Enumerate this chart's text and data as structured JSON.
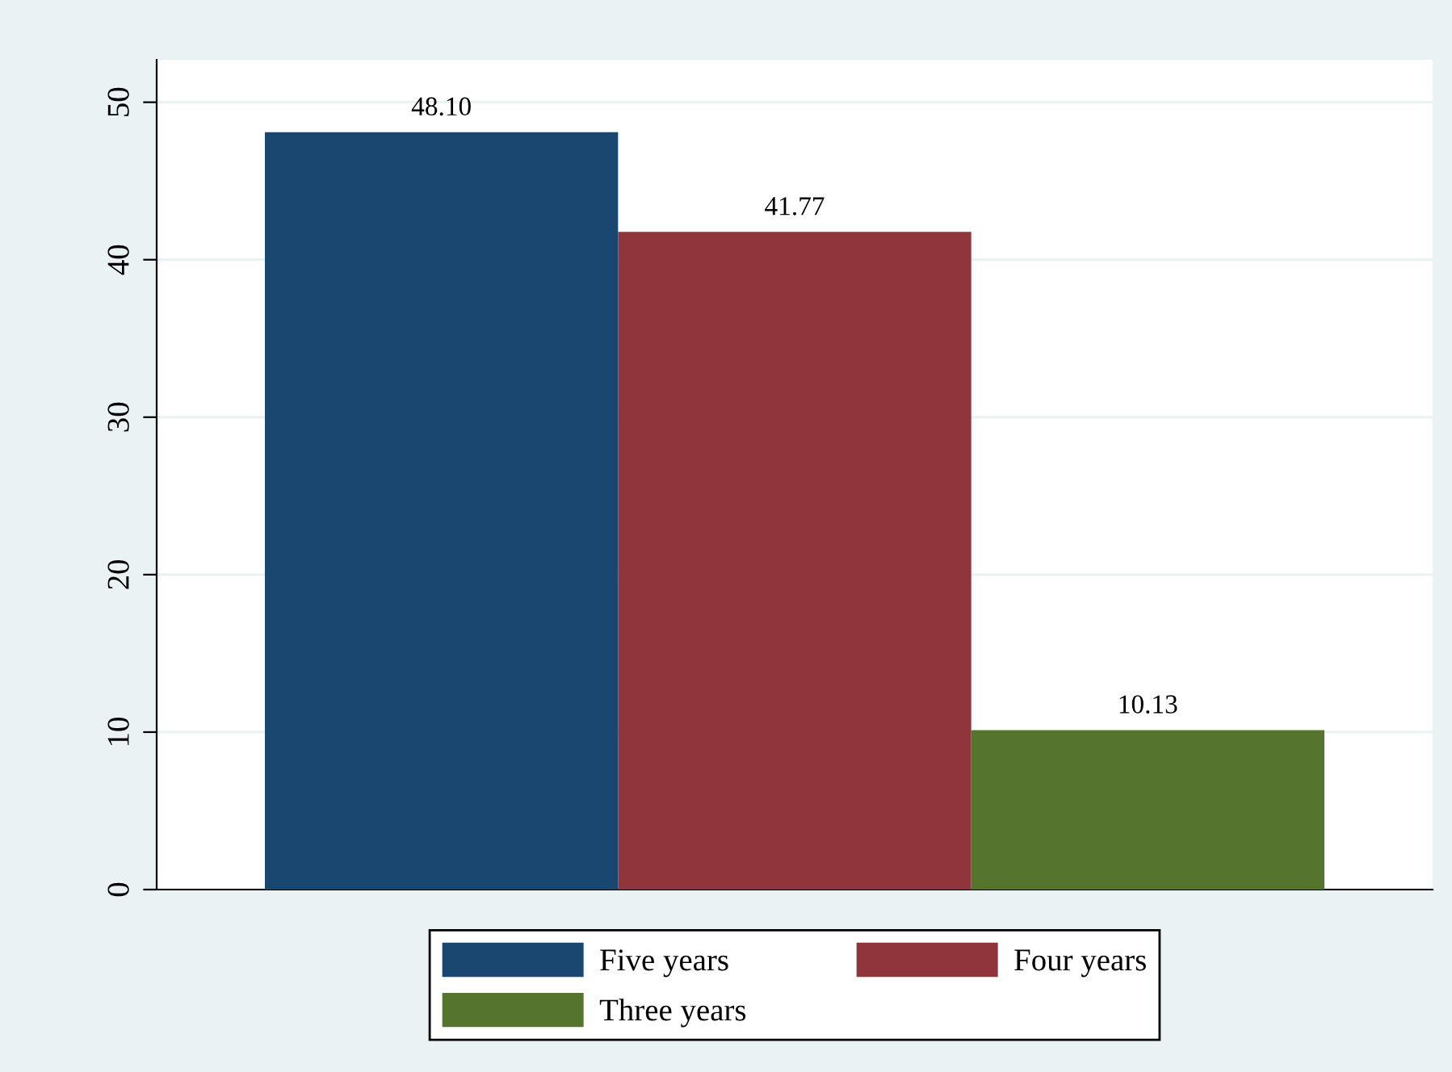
{
  "chart_data": {
    "type": "bar",
    "categories": [
      null
    ],
    "series": [
      {
        "name": "Five years",
        "color": "#1a476f",
        "values": [
          48.1
        ],
        "value_labels": [
          "48.10"
        ]
      },
      {
        "name": "Four years",
        "color": "#90353b",
        "values": [
          41.77
        ],
        "value_labels": [
          "41.77"
        ]
      },
      {
        "name": "Three years",
        "color": "#55752f",
        "values": [
          10.13
        ],
        "value_labels": [
          "10.13"
        ]
      }
    ],
    "ylim": [
      0,
      52.7
    ],
    "yticks": [
      0,
      10,
      20,
      30,
      40,
      50
    ],
    "grid": "y",
    "legend": "bottom"
  }
}
